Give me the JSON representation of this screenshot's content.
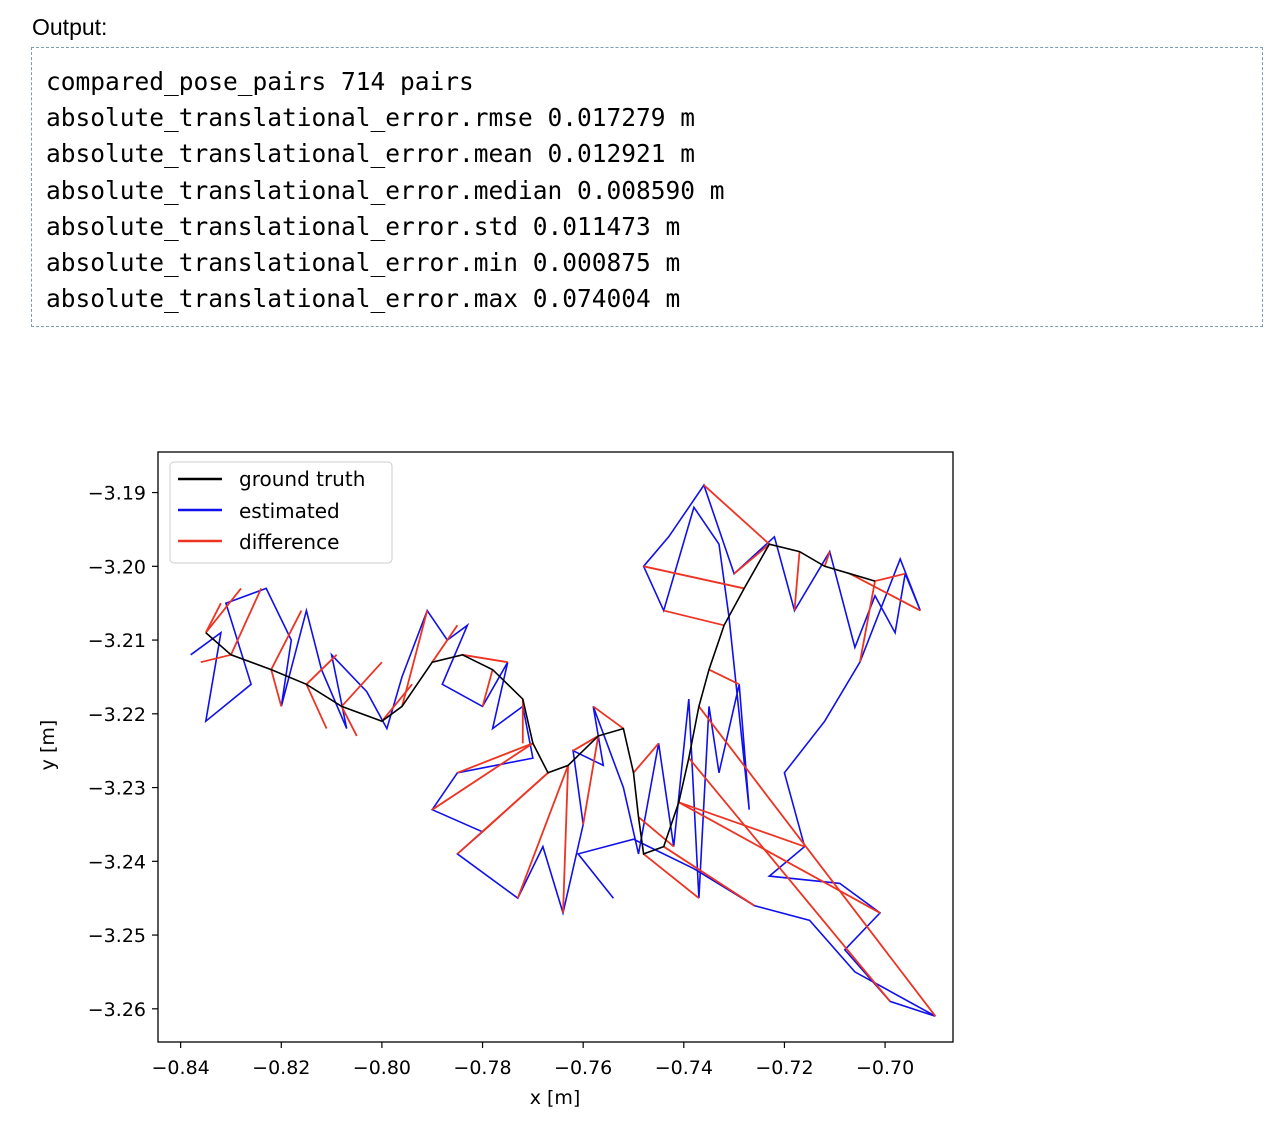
{
  "output": {
    "label": "Output:",
    "lines": [
      "compared_pose_pairs 714 pairs",
      "absolute_translational_error.rmse 0.017279 m",
      "absolute_translational_error.mean 0.012921 m",
      "absolute_translational_error.median 0.008590 m",
      "absolute_translational_error.std 0.011473 m",
      "absolute_translational_error.min 0.000875 m",
      "absolute_translational_error.max 0.074004 m"
    ]
  },
  "chart_data": {
    "type": "line",
    "xlabel": "x [m]",
    "ylabel": "y [m]",
    "xlim": [
      -0.8445,
      -0.6865
    ],
    "ylim": [
      -3.2645,
      -3.1845
    ],
    "xticks": [
      -0.84,
      -0.82,
      -0.8,
      -0.78,
      -0.76,
      -0.74,
      -0.72,
      -0.7
    ],
    "xtick_labels": [
      "−0.84",
      "−0.82",
      "−0.80",
      "−0.78",
      "−0.76",
      "−0.74",
      "−0.72",
      "−0.70"
    ],
    "yticks": [
      -3.19,
      -3.2,
      -3.21,
      -3.22,
      -3.23,
      -3.24,
      -3.25,
      -3.26
    ],
    "ytick_labels": [
      "−3.19",
      "−3.20",
      "−3.21",
      "−3.22",
      "−3.23",
      "−3.24",
      "−3.25",
      "−3.26"
    ],
    "grid": false,
    "legend_position": "top-left",
    "series": [
      {
        "name": "ground truth",
        "color": "#000000",
        "points": [
          [
            -0.835,
            -3.209
          ],
          [
            -0.83,
            -3.212
          ],
          [
            -0.822,
            -3.214
          ],
          [
            -0.815,
            -3.216
          ],
          [
            -0.808,
            -3.219
          ],
          [
            -0.8,
            -3.221
          ],
          [
            -0.796,
            -3.219
          ],
          [
            -0.79,
            -3.213
          ],
          [
            -0.784,
            -3.212
          ],
          [
            -0.778,
            -3.214
          ],
          [
            -0.772,
            -3.218
          ],
          [
            -0.77,
            -3.224
          ],
          [
            -0.767,
            -3.228
          ],
          [
            -0.763,
            -3.227
          ],
          [
            -0.757,
            -3.223
          ],
          [
            -0.752,
            -3.222
          ],
          [
            -0.75,
            -3.228
          ],
          [
            -0.749,
            -3.234
          ],
          [
            -0.748,
            -3.239
          ],
          [
            -0.744,
            -3.238
          ],
          [
            -0.741,
            -3.232
          ],
          [
            -0.739,
            -3.226
          ],
          [
            -0.737,
            -3.219
          ],
          [
            -0.735,
            -3.214
          ],
          [
            -0.732,
            -3.208
          ],
          [
            -0.728,
            -3.203
          ],
          [
            -0.723,
            -3.197
          ],
          [
            -0.717,
            -3.198
          ],
          [
            -0.712,
            -3.2
          ],
          [
            -0.707,
            -3.201
          ],
          [
            -0.702,
            -3.202
          ]
        ]
      },
      {
        "name": "estimated",
        "color": "#1010ee",
        "points": [
          [
            -0.838,
            -3.212
          ],
          [
            -0.832,
            -3.209
          ],
          [
            -0.835,
            -3.221
          ],
          [
            -0.826,
            -3.216
          ],
          [
            -0.831,
            -3.205
          ],
          [
            -0.823,
            -3.203
          ],
          [
            -0.818,
            -3.21
          ],
          [
            -0.82,
            -3.219
          ],
          [
            -0.815,
            -3.206
          ],
          [
            -0.812,
            -3.214
          ],
          [
            -0.807,
            -3.222
          ],
          [
            -0.81,
            -3.212
          ],
          [
            -0.803,
            -3.217
          ],
          [
            -0.799,
            -3.222
          ],
          [
            -0.796,
            -3.215
          ],
          [
            -0.791,
            -3.206
          ],
          [
            -0.787,
            -3.21
          ],
          [
            -0.783,
            -3.208
          ],
          [
            -0.788,
            -3.216
          ],
          [
            -0.78,
            -3.219
          ],
          [
            -0.775,
            -3.213
          ],
          [
            -0.778,
            -3.222
          ],
          [
            -0.772,
            -3.219
          ],
          [
            -0.77,
            -3.226
          ],
          [
            -0.785,
            -3.228
          ],
          [
            -0.79,
            -3.233
          ],
          [
            -0.78,
            -3.236
          ],
          [
            -0.785,
            -3.239
          ],
          [
            -0.773,
            -3.245
          ],
          [
            -0.768,
            -3.238
          ],
          [
            -0.764,
            -3.247
          ],
          [
            -0.76,
            -3.235
          ],
          [
            -0.762,
            -3.225
          ],
          [
            -0.756,
            -3.227
          ],
          [
            -0.758,
            -3.219
          ],
          [
            -0.752,
            -3.23
          ],
          [
            -0.749,
            -3.239
          ],
          [
            -0.745,
            -3.224
          ],
          [
            -0.742,
            -3.238
          ],
          [
            -0.739,
            -3.218
          ],
          [
            -0.737,
            -3.245
          ],
          [
            -0.735,
            -3.219
          ],
          [
            -0.733,
            -3.228
          ],
          [
            -0.729,
            -3.216
          ],
          [
            -0.727,
            -3.233
          ],
          [
            -0.731,
            -3.207
          ],
          [
            -0.733,
            -3.197
          ],
          [
            -0.738,
            -3.192
          ],
          [
            -0.744,
            -3.206
          ],
          [
            -0.748,
            -3.2
          ],
          [
            -0.743,
            -3.196
          ],
          [
            -0.736,
            -3.189
          ],
          [
            -0.73,
            -3.201
          ],
          [
            -0.722,
            -3.196
          ],
          [
            -0.718,
            -3.206
          ],
          [
            -0.711,
            -3.198
          ],
          [
            -0.706,
            -3.211
          ],
          [
            -0.702,
            -3.204
          ],
          [
            -0.698,
            -3.209
          ],
          [
            -0.696,
            -3.201
          ],
          [
            -0.693,
            -3.206
          ],
          [
            -0.697,
            -3.199
          ],
          [
            -0.705,
            -3.213
          ],
          [
            -0.712,
            -3.221
          ],
          [
            -0.72,
            -3.228
          ],
          [
            -0.716,
            -3.238
          ],
          [
            -0.723,
            -3.242
          ],
          [
            -0.709,
            -3.243
          ],
          [
            -0.701,
            -3.247
          ],
          [
            -0.708,
            -3.252
          ],
          [
            -0.699,
            -3.259
          ],
          [
            -0.69,
            -3.261
          ],
          [
            -0.706,
            -3.255
          ],
          [
            -0.715,
            -3.248
          ],
          [
            -0.726,
            -3.246
          ],
          [
            -0.738,
            -3.241
          ],
          [
            -0.75,
            -3.237
          ],
          [
            -0.761,
            -3.239
          ],
          [
            -0.754,
            -3.245
          ]
        ]
      },
      {
        "name": "difference",
        "color": "#ee3322",
        "pairs": [
          [
            [
              -0.835,
              -3.209
            ],
            [
              -0.828,
              -3.203
            ]
          ],
          [
            [
              -0.835,
              -3.209
            ],
            [
              -0.832,
              -3.205
            ]
          ],
          [
            [
              -0.83,
              -3.212
            ],
            [
              -0.824,
              -3.203
            ]
          ],
          [
            [
              -0.83,
              -3.212
            ],
            [
              -0.836,
              -3.213
            ]
          ],
          [
            [
              -0.822,
              -3.214
            ],
            [
              -0.816,
              -3.206
            ]
          ],
          [
            [
              -0.822,
              -3.214
            ],
            [
              -0.82,
              -3.219
            ]
          ],
          [
            [
              -0.815,
              -3.216
            ],
            [
              -0.809,
              -3.212
            ]
          ],
          [
            [
              -0.815,
              -3.216
            ],
            [
              -0.811,
              -3.222
            ]
          ],
          [
            [
              -0.808,
              -3.219
            ],
            [
              -0.805,
              -3.223
            ]
          ],
          [
            [
              -0.808,
              -3.219
            ],
            [
              -0.8,
              -3.213
            ]
          ],
          [
            [
              -0.8,
              -3.221
            ],
            [
              -0.794,
              -3.216
            ]
          ],
          [
            [
              -0.796,
              -3.219
            ],
            [
              -0.791,
              -3.206
            ]
          ],
          [
            [
              -0.79,
              -3.213
            ],
            [
              -0.785,
              -3.208
            ]
          ],
          [
            [
              -0.784,
              -3.212
            ],
            [
              -0.775,
              -3.213
            ]
          ],
          [
            [
              -0.778,
              -3.214
            ],
            [
              -0.78,
              -3.219
            ]
          ],
          [
            [
              -0.772,
              -3.218
            ],
            [
              -0.772,
              -3.224
            ]
          ],
          [
            [
              -0.77,
              -3.224
            ],
            [
              -0.785,
              -3.228
            ]
          ],
          [
            [
              -0.77,
              -3.224
            ],
            [
              -0.79,
              -3.233
            ]
          ],
          [
            [
              -0.767,
              -3.228
            ],
            [
              -0.78,
              -3.236
            ]
          ],
          [
            [
              -0.767,
              -3.228
            ],
            [
              -0.785,
              -3.239
            ]
          ],
          [
            [
              -0.763,
              -3.227
            ],
            [
              -0.773,
              -3.245
            ]
          ],
          [
            [
              -0.763,
              -3.227
            ],
            [
              -0.764,
              -3.247
            ]
          ],
          [
            [
              -0.757,
              -3.223
            ],
            [
              -0.76,
              -3.235
            ]
          ],
          [
            [
              -0.757,
              -3.223
            ],
            [
              -0.762,
              -3.225
            ]
          ],
          [
            [
              -0.752,
              -3.222
            ],
            [
              -0.758,
              -3.219
            ]
          ],
          [
            [
              -0.75,
              -3.228
            ],
            [
              -0.745,
              -3.224
            ]
          ],
          [
            [
              -0.749,
              -3.234
            ],
            [
              -0.742,
              -3.238
            ]
          ],
          [
            [
              -0.748,
              -3.239
            ],
            [
              -0.737,
              -3.245
            ]
          ],
          [
            [
              -0.744,
              -3.238
            ],
            [
              -0.726,
              -3.246
            ]
          ],
          [
            [
              -0.741,
              -3.232
            ],
            [
              -0.716,
              -3.238
            ]
          ],
          [
            [
              -0.741,
              -3.232
            ],
            [
              -0.701,
              -3.247
            ]
          ],
          [
            [
              -0.739,
              -3.226
            ],
            [
              -0.699,
              -3.259
            ]
          ],
          [
            [
              -0.737,
              -3.219
            ],
            [
              -0.69,
              -3.261
            ]
          ],
          [
            [
              -0.735,
              -3.214
            ],
            [
              -0.729,
              -3.216
            ]
          ],
          [
            [
              -0.732,
              -3.208
            ],
            [
              -0.744,
              -3.206
            ]
          ],
          [
            [
              -0.728,
              -3.203
            ],
            [
              -0.748,
              -3.2
            ]
          ],
          [
            [
              -0.723,
              -3.197
            ],
            [
              -0.736,
              -3.189
            ]
          ],
          [
            [
              -0.723,
              -3.197
            ],
            [
              -0.73,
              -3.201
            ]
          ],
          [
            [
              -0.717,
              -3.198
            ],
            [
              -0.718,
              -3.206
            ]
          ],
          [
            [
              -0.712,
              -3.2
            ],
            [
              -0.711,
              -3.198
            ]
          ],
          [
            [
              -0.707,
              -3.201
            ],
            [
              -0.693,
              -3.206
            ]
          ],
          [
            [
              -0.702,
              -3.202
            ],
            [
              -0.696,
              -3.201
            ]
          ],
          [
            [
              -0.702,
              -3.202
            ],
            [
              -0.705,
              -3.213
            ]
          ]
        ]
      }
    ]
  }
}
